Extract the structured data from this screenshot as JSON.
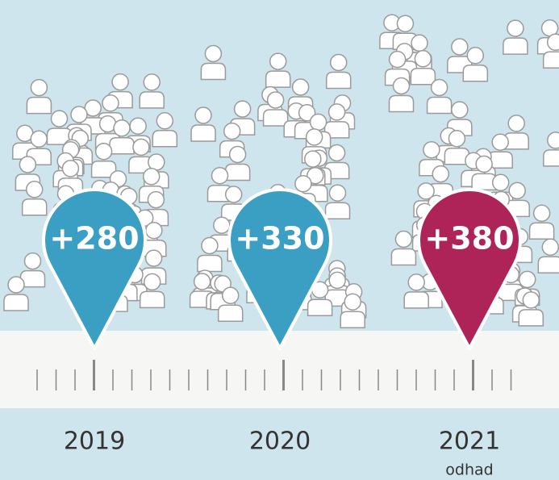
{
  "pins": [
    {
      "label": "+280",
      "year": "2019",
      "color": "#3b9fc3"
    },
    {
      "label": "+330",
      "year": "2020",
      "color": "#3b9fc3"
    },
    {
      "label": "+380",
      "year": "2021",
      "color": "#ae2459"
    }
  ],
  "note": "odhad"
}
